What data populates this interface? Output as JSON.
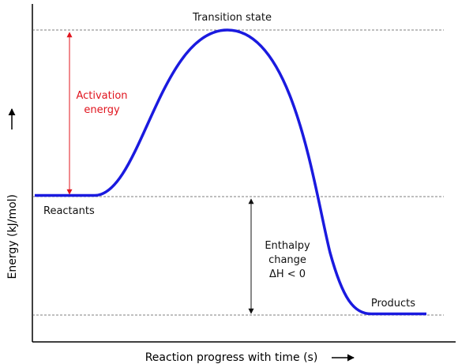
{
  "labels": {
    "transition_state": "Transition state",
    "activation_energy_line1": "Activation",
    "activation_energy_line2": "energy",
    "reactants": "Reactants",
    "products": "Products",
    "enthalpy_line1": "Enthalpy",
    "enthalpy_line2": "change",
    "enthalpy_line3": "ΔH < 0"
  },
  "axes": {
    "xlabel": "Reaction progress with time (s)",
    "ylabel": "Energy (kJ/mol)"
  },
  "colors": {
    "curve": "#1a1adf",
    "activation": "#e0141e",
    "text": "#111111",
    "axis": "#000000",
    "guide": "#555555"
  }
}
